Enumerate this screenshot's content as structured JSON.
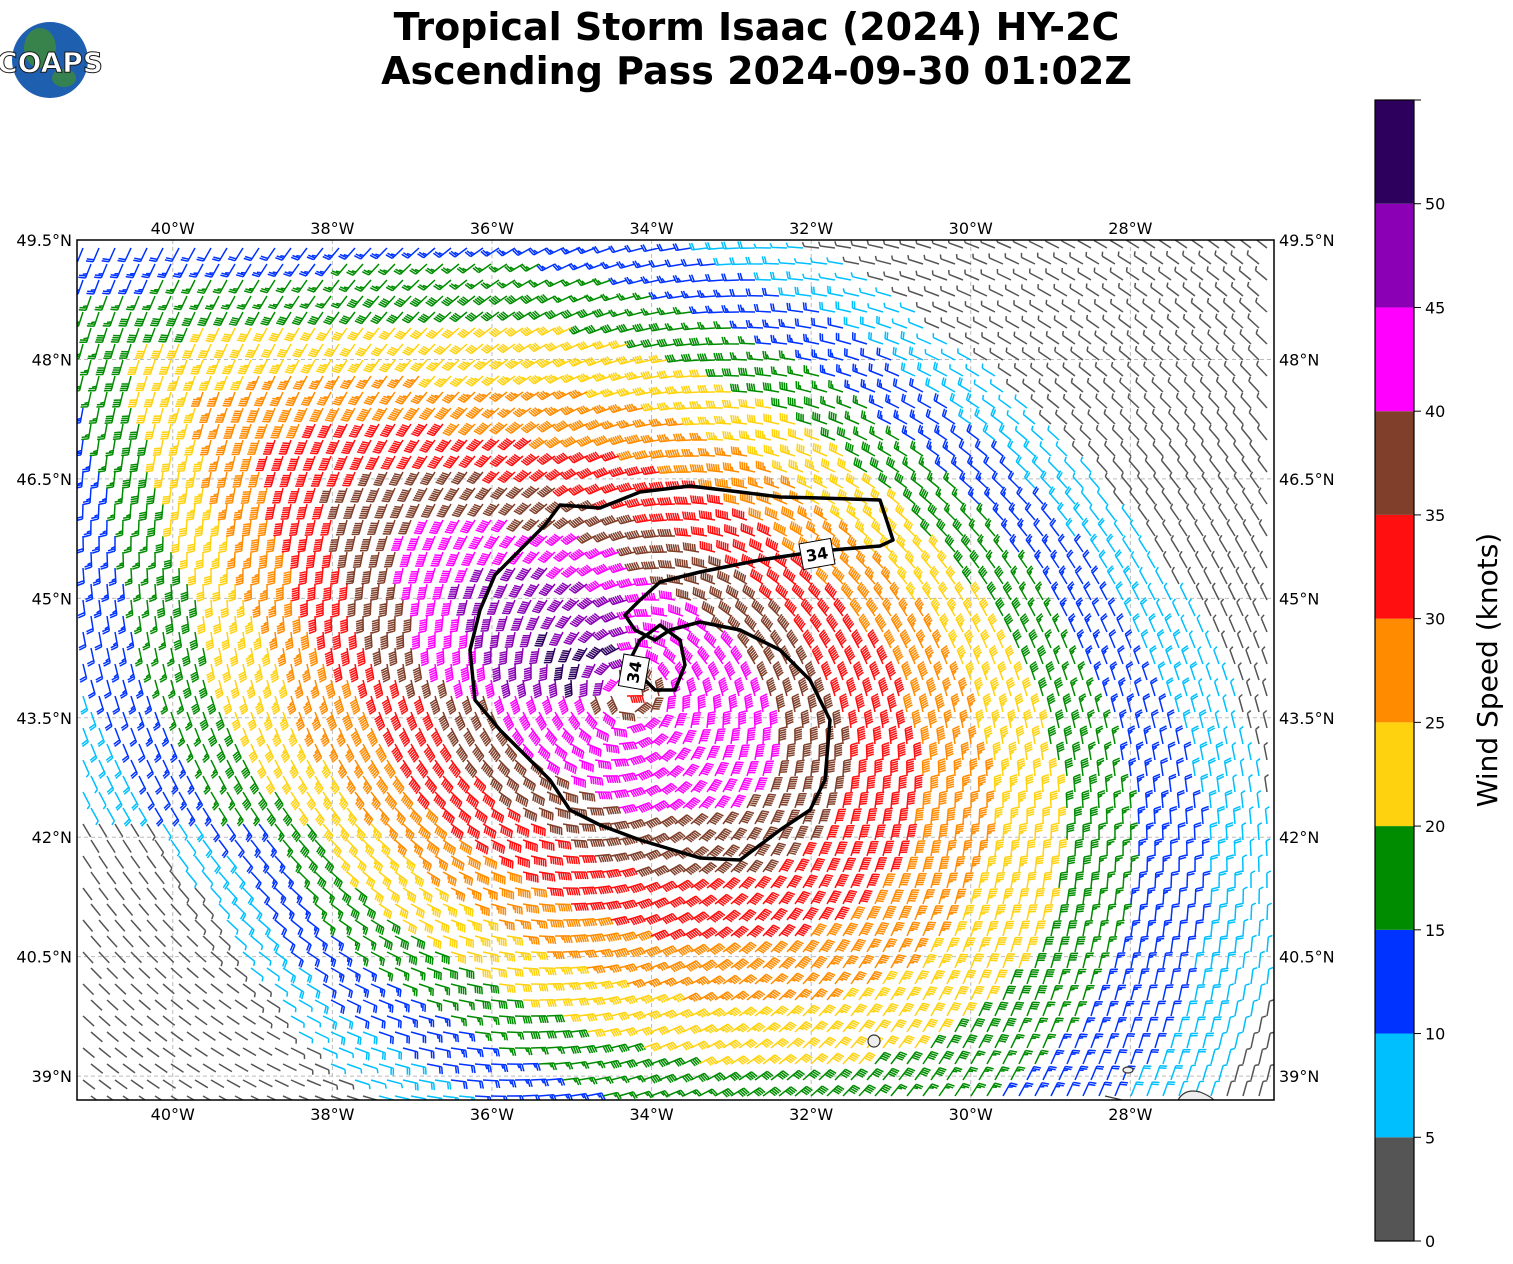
{
  "title": {
    "line1": "Tropical Storm Isaac (2024) HY-2C",
    "line2": "Ascending Pass 2024-09-30 01:02Z"
  },
  "logo": {
    "text": "COAPS",
    "icon": "globe-logo-icon"
  },
  "map": {
    "lon_range": [
      -41.2,
      -26.2
    ],
    "lat_range": [
      38.7,
      49.5
    ],
    "lon_ticks": [
      {
        "value": -40,
        "label": "40°W"
      },
      {
        "value": -38,
        "label": "38°W"
      },
      {
        "value": -36,
        "label": "36°W"
      },
      {
        "value": -34,
        "label": "34°W"
      },
      {
        "value": -32,
        "label": "32°W"
      },
      {
        "value": -30,
        "label": "30°W"
      },
      {
        "value": -28,
        "label": "28°W"
      }
    ],
    "lat_ticks": [
      {
        "value": 49.5,
        "label": "49.5°N"
      },
      {
        "value": 48,
        "label": "48°N"
      },
      {
        "value": 46.5,
        "label": "46.5°N"
      },
      {
        "value": 45,
        "label": "45°N"
      },
      {
        "value": 43.5,
        "label": "43.5°N"
      },
      {
        "value": 42,
        "label": "42°N"
      },
      {
        "value": 40.5,
        "label": "40.5°N"
      },
      {
        "value": 39,
        "label": "39°N"
      }
    ],
    "storm_center": {
      "lon": -34.3,
      "lat": 43.8
    },
    "contour_labels": [
      "34",
      "34"
    ]
  },
  "colorbar": {
    "label": "Wind Speed (knots)",
    "tick_labels": [
      "0",
      "5",
      "10",
      "15",
      "20",
      "25",
      "30",
      "35",
      "40",
      "45",
      "50"
    ],
    "bins": [
      {
        "min": 0,
        "max": 5,
        "color": "#555555"
      },
      {
        "min": 5,
        "max": 10,
        "color": "#00bfff"
      },
      {
        "min": 10,
        "max": 15,
        "color": "#0033ff"
      },
      {
        "min": 15,
        "max": 20,
        "color": "#008c00"
      },
      {
        "min": 20,
        "max": 25,
        "color": "#ffd20f"
      },
      {
        "min": 25,
        "max": 30,
        "color": "#ff8c00"
      },
      {
        "min": 30,
        "max": 35,
        "color": "#ff0f0f"
      },
      {
        "min": 35,
        "max": 40,
        "color": "#7f3f2a"
      },
      {
        "min": 40,
        "max": 45,
        "color": "#ff00ff"
      },
      {
        "min": 45,
        "max": 50,
        "color": "#8b00b5"
      },
      {
        "min": 50,
        "max": 55,
        "color": "#2e005e"
      }
    ]
  }
}
